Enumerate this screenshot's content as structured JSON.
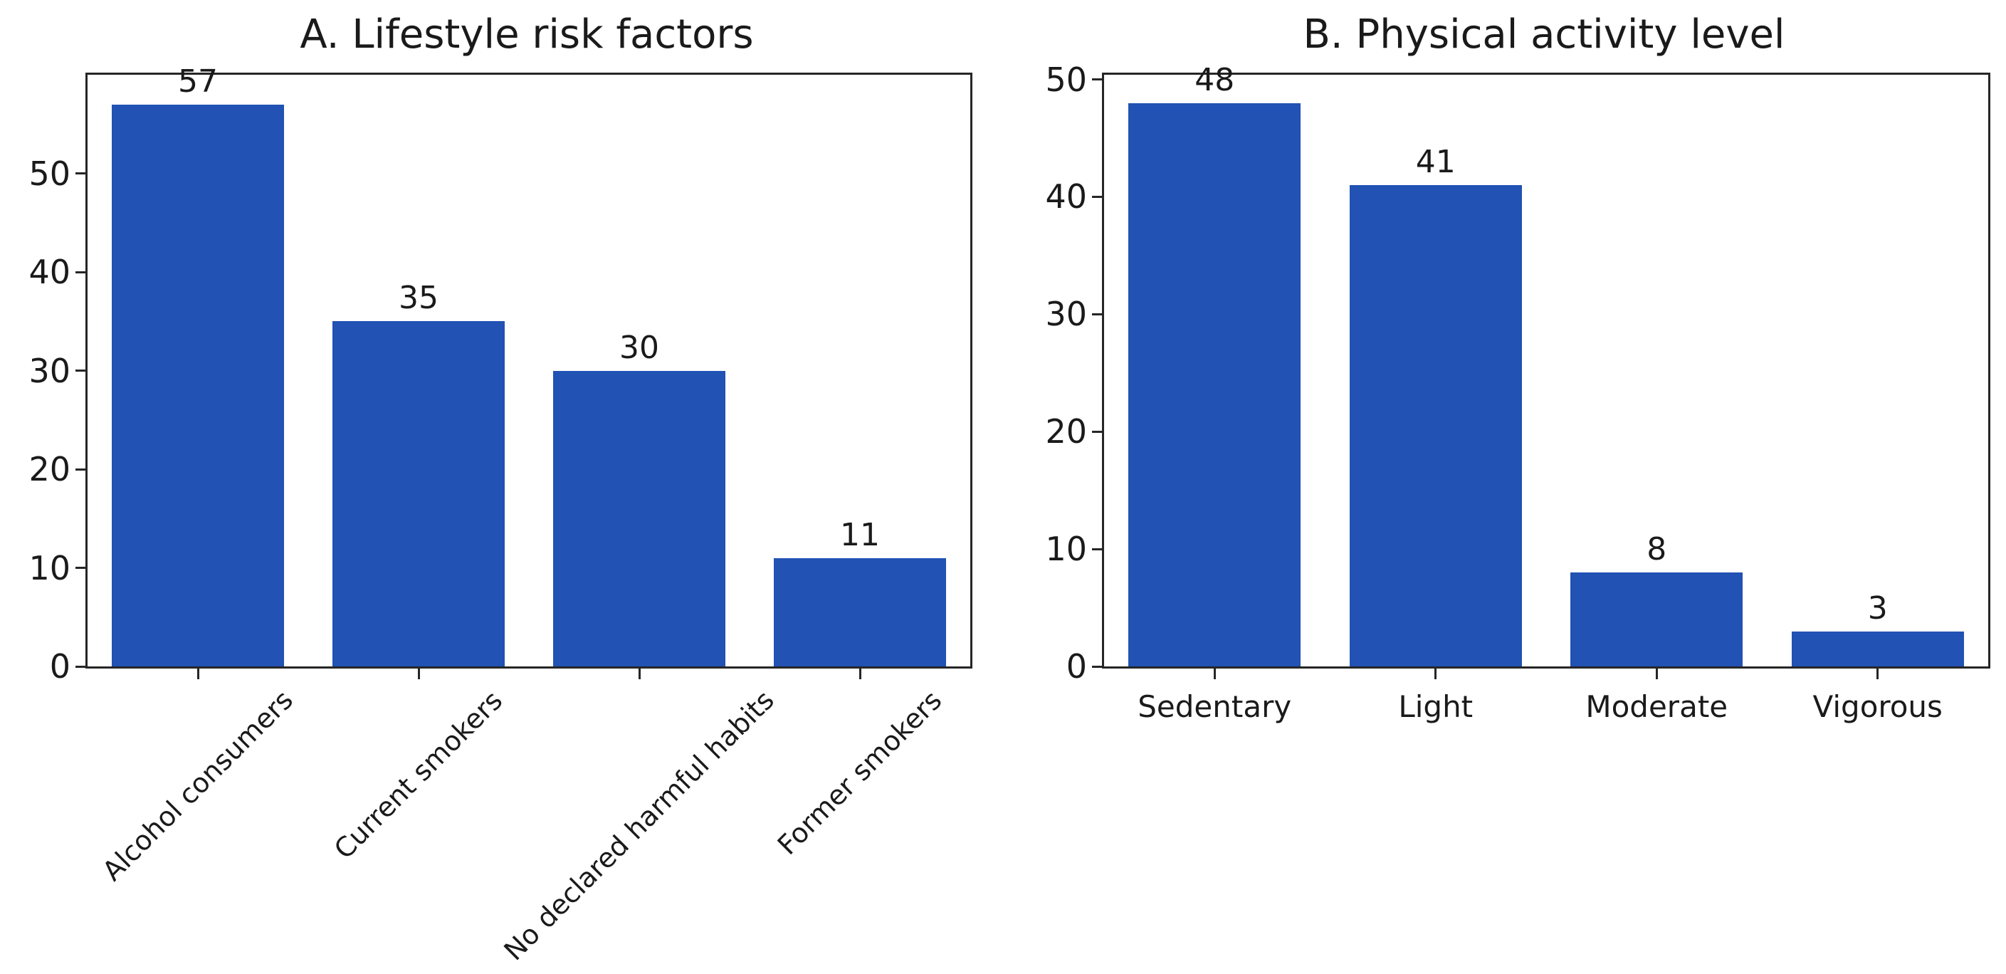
{
  "figure": {
    "background": "#ffffff",
    "axis_color": "#262626",
    "text_color": "#1a1a1a",
    "bar_color": "#2152b4"
  },
  "chart_data": [
    {
      "type": "bar",
      "panel": "A",
      "title": "A. Lifestyle risk factors",
      "categories": [
        "Alcohol consumers",
        "Current smokers",
        "No declared harmful habits",
        "Former smokers"
      ],
      "values": [
        57,
        35,
        30,
        11
      ],
      "bar_value_labels": [
        "57",
        "35",
        "30",
        "11"
      ],
      "yticks": [
        0,
        10,
        20,
        30,
        40,
        50
      ],
      "ylim": [
        0,
        60
      ],
      "xlabel": "",
      "ylabel": "",
      "xtick_rotation": 45,
      "grid": false,
      "legend": null,
      "bar_color": "#2152b4"
    },
    {
      "type": "bar",
      "panel": "B",
      "title": "B. Physical activity level",
      "categories": [
        "Sedentary",
        "Light",
        "Moderate",
        "Vigorous"
      ],
      "values": [
        48,
        41,
        8,
        3
      ],
      "bar_value_labels": [
        "48",
        "41",
        "8",
        "3"
      ],
      "yticks": [
        0,
        10,
        20,
        30,
        40,
        50
      ],
      "ylim": [
        0,
        50.4
      ],
      "xlabel": "",
      "ylabel": "",
      "xtick_rotation": 0,
      "grid": false,
      "legend": null,
      "bar_color": "#2152b4"
    }
  ]
}
